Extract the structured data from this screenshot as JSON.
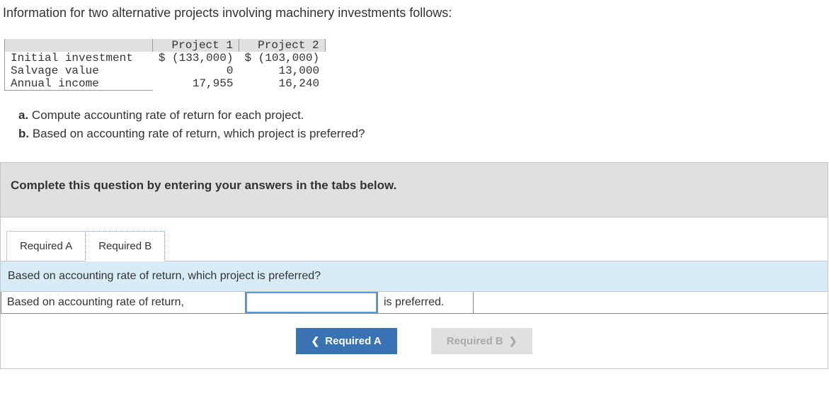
{
  "intro": "Information for two alternative projects involving machinery investments follows:",
  "table": {
    "header_blank": "",
    "col1": "Project 1",
    "col2": "Project 2",
    "rows": [
      {
        "label": "Initial investment",
        "v1": "$ (133,000)",
        "v2": "$ (103,000)"
      },
      {
        "label": "Salvage value",
        "v1": "0",
        "v2": "13,000"
      },
      {
        "label": "Annual income",
        "v1": "17,955",
        "v2": "16,240"
      }
    ]
  },
  "questions": {
    "a_prefix": "a.",
    "a_text": " Compute accounting rate of return for each project.",
    "b_prefix": "b.",
    "b_text": " Based on accounting rate of return, which project is preferred?"
  },
  "instruction": "Complete this question by entering your answers in the tabs below.",
  "tabs": {
    "a": "Required A",
    "b": "Required B"
  },
  "tab_prompt": "Based on accounting rate of return, which project is preferred?",
  "answer": {
    "label": "Based on accounting rate of return,",
    "value": "",
    "suffix": "is preferred."
  },
  "nav": {
    "prev": "Required A",
    "next": "Required B"
  }
}
